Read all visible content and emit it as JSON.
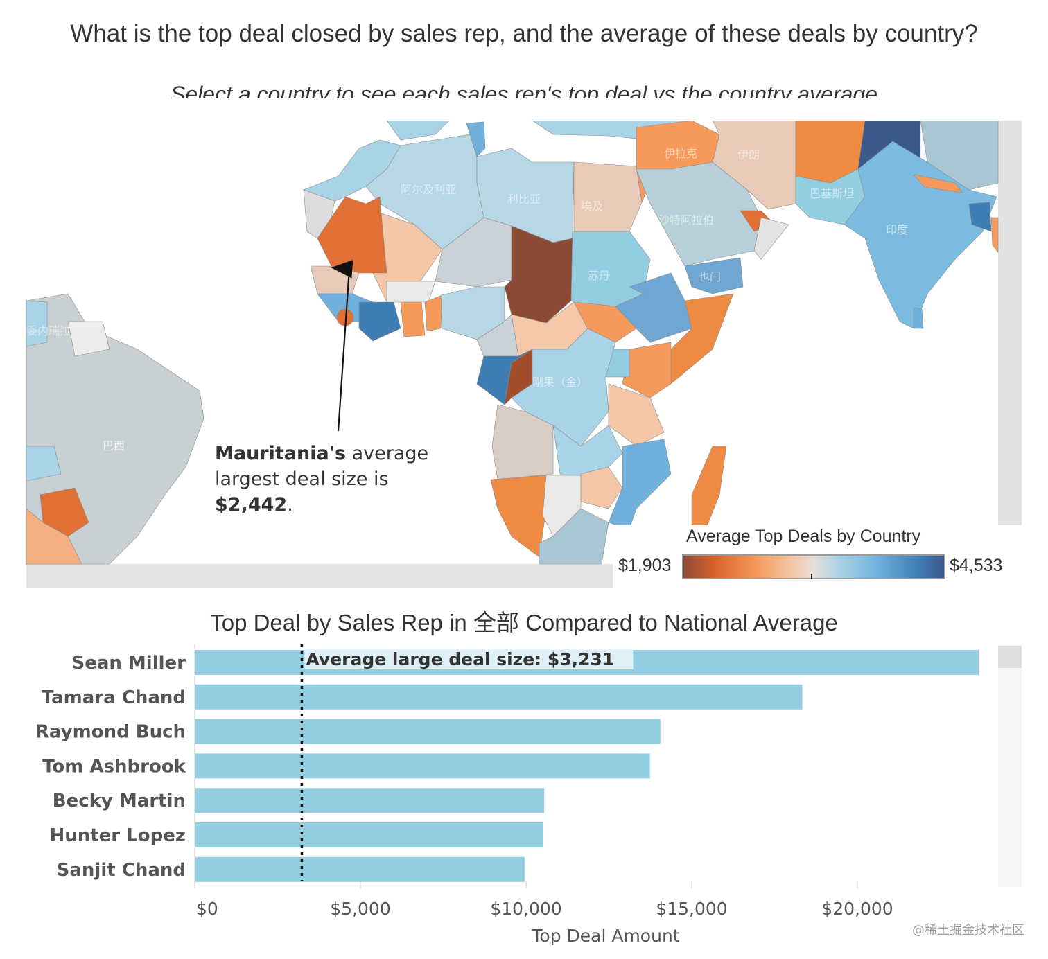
{
  "header": {
    "title": "What is the top deal closed by sales rep, and the average of these deals by country?",
    "subtitle": "Select a country to see each sales rep's top deal vs the country average"
  },
  "map": {
    "country_labels": {
      "algeria": "阿尔及利亚",
      "libya": "利比亚",
      "egypt": "埃及",
      "iran": "伊朗",
      "iraq": "伊拉克",
      "pakistan": "巴基斯坦",
      "saudi": "沙特阿拉伯",
      "india": "印度",
      "sudan": "苏丹",
      "yemen": "也门",
      "drc": "刚果（金）",
      "brazil": "巴西",
      "venezuela": "委内瑞拉"
    },
    "annotation": {
      "country": "Mauritania's",
      "text_a": " average",
      "text_b": "largest deal size is",
      "value": "$2,442",
      "end": "."
    },
    "legend": {
      "title": "Average Top Deals by Country",
      "min": "$1,903",
      "max": "$4,533"
    }
  },
  "bar_title": "Top Deal by Sales Rep in 全部 Compared to National Average",
  "chart_data": {
    "type": "bar",
    "orientation": "horizontal",
    "title": "Top Deal by Sales Rep in 全部 Compared to National Average",
    "categories": [
      "Sean Miller",
      "Tamara Chand",
      "Raymond Buch",
      "Tom Ashbrook",
      "Becky Martin",
      "Hunter Lopez",
      "Sanjit Chand"
    ],
    "values": [
      23661,
      18337,
      14053,
      13738,
      10547,
      10524,
      9953
    ],
    "xlabel": "Top Deal Amount",
    "xlim": [
      0,
      24000
    ],
    "xticks": [
      0,
      5000,
      10000,
      15000,
      20000
    ],
    "xtick_labels": [
      "$0",
      "$5,000",
      "$10,000",
      "$15,000",
      "$20,000"
    ],
    "reference_line": {
      "value": 3231,
      "label": "Average large deal size: $3,231"
    },
    "bar_color": "#92cde2",
    "grid": false
  },
  "watermark": "@稀土掘金技术社区"
}
